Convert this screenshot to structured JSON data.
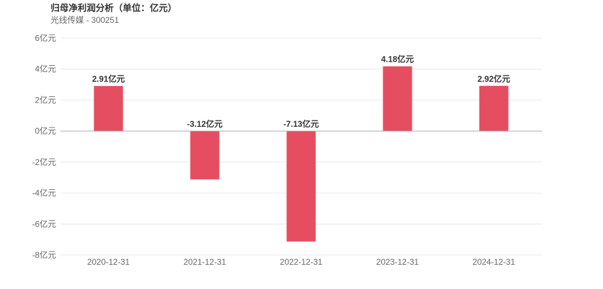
{
  "header": {
    "title": "归母净利润分析（单位：亿元）",
    "subtitle": "光线传媒 - 300251"
  },
  "colors": {
    "bar": "#e54d61",
    "grid": "#e8e8e8",
    "zero_line": "#aaaaaa"
  },
  "chart_data": {
    "type": "bar",
    "title": "归母净利润分析（单位：亿元）",
    "subtitle": "光线传媒 - 300251",
    "categories": [
      "2020-12-31",
      "2021-12-31",
      "2022-12-31",
      "2023-12-31",
      "2024-12-31"
    ],
    "values": [
      2.91,
      -3.12,
      -7.13,
      4.18,
      2.92
    ],
    "data_labels": [
      "2.91亿元",
      "-3.12亿元",
      "-7.13亿元",
      "4.18亿元",
      "2.92亿元"
    ],
    "ylim": [
      -8,
      6
    ],
    "yticks": [
      6,
      4,
      2,
      0,
      -2,
      -4,
      -6,
      -8
    ],
    "ytick_labels": [
      "6亿元",
      "4亿元",
      "2亿元",
      "0亿元",
      "-2亿元",
      "-4亿元",
      "-6亿元",
      "-8亿元"
    ],
    "xlabel": "",
    "ylabel": "",
    "grid": true,
    "legend": "none"
  }
}
